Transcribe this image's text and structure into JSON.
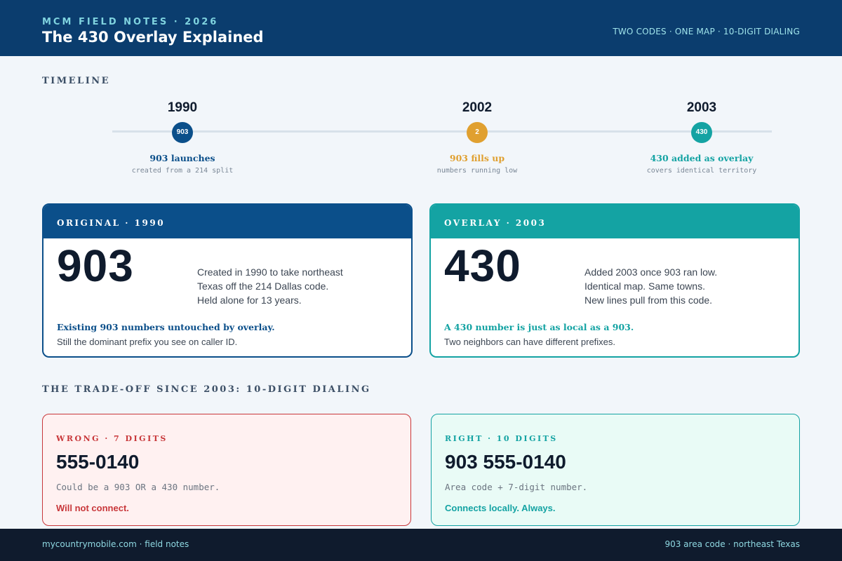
{
  "header": {
    "kicker": "MCM FIELD NOTES · 2026",
    "title": "The 430 Overlay Explained",
    "tagline": "TWO CODES · ONE MAP · 10-DIGIT DIALING"
  },
  "timeline": {
    "label": "TIMELINE",
    "events": [
      {
        "year": "1990",
        "marker": "903",
        "title": "903 launches",
        "note": "created from a 214 split",
        "color": "#0b4f8a"
      },
      {
        "year": "2002",
        "marker": "2",
        "title": "903 fills up",
        "note": "numbers running low",
        "color": "#e0a030"
      },
      {
        "year": "2003",
        "marker": "430",
        "title": "430 added as overlay",
        "note": "covers identical territory",
        "color": "#14a3a3"
      }
    ]
  },
  "cards": {
    "original": {
      "header": "ORIGINAL · 1990",
      "code": "903",
      "desc": [
        "Created in 1990 to take northeast",
        "Texas off the 214 Dallas code.",
        "Held alone for 13 years."
      ],
      "callout": "Existing 903 numbers untouched by overlay.",
      "sub": "Still the dominant prefix you see on caller ID.",
      "color": "#0b4f8a"
    },
    "overlay": {
      "header": "OVERLAY · 2003",
      "code": "430",
      "desc": [
        "Added 2003 once 903 ran low.",
        "Identical map. Same towns.",
        "New lines pull from this code."
      ],
      "callout": "A 430 number is just as local as a 903.",
      "sub": "Two neighbors can have different prefixes.",
      "color": "#14a3a3"
    }
  },
  "tradeoff": {
    "label": "THE TRADE-OFF SINCE 2003: 10-DIGIT DIALING",
    "wrong": {
      "label": "WRONG · 7 DIGITS",
      "number": "555-0140",
      "note": "Could be a 903 OR a 430 number.",
      "result": "Will not connect.",
      "color": "#c8373a"
    },
    "right": {
      "label": "RIGHT · 10 DIGITS",
      "number": "903 555-0140",
      "note": "Area code + 7-digit number.",
      "result": "Connects locally. Always.",
      "color": "#14a3a3"
    }
  },
  "footer": {
    "left": "mycountrymobile.com · field notes",
    "right": "903 area code · northeast Texas"
  }
}
